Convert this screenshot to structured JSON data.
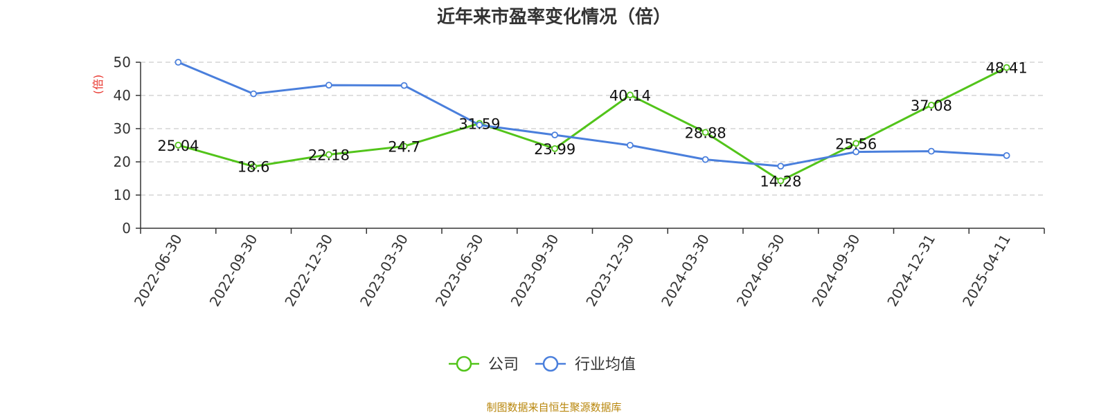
{
  "chart_data": {
    "type": "line",
    "title": "近年来市盈率变化情况（倍）",
    "ylabel": "倍",
    "ylim": [
      0,
      50
    ],
    "yticks": [
      0,
      10,
      20,
      30,
      40,
      50
    ],
    "grid": true,
    "legend_position": "bottom",
    "categories": [
      "2022-06-30",
      "2022-09-30",
      "2022-12-30",
      "2023-03-30",
      "2023-06-30",
      "2023-09-30",
      "2023-12-30",
      "2024-03-30",
      "2024-06-30",
      "2024-09-30",
      "2024-12-31",
      "2025-04-11"
    ],
    "series": [
      {
        "name": "公司",
        "color": "#52c41a",
        "values": [
          25.04,
          18.6,
          22.18,
          24.7,
          31.59,
          23.99,
          40.14,
          28.88,
          14.28,
          25.56,
          37.08,
          48.41
        ],
        "labels": [
          "25.04",
          "18.6",
          "22.18",
          "24.7",
          "31.59",
          "23.99",
          "40.14",
          "28.88",
          "14.28",
          "25.56",
          "37.08",
          "48.41"
        ]
      },
      {
        "name": "行业均值",
        "color": "#4a7fdc",
        "values": [
          50.0,
          40.5,
          43.1,
          43.0,
          31.1,
          28.1,
          25.0,
          20.7,
          18.7,
          23.0,
          23.2,
          21.9
        ]
      }
    ]
  },
  "source_note": "制图数据来自恒生聚源数据库",
  "colors": {
    "ylabel": "#e8342c",
    "axis": "#333333",
    "grid": "#cccccc"
  }
}
